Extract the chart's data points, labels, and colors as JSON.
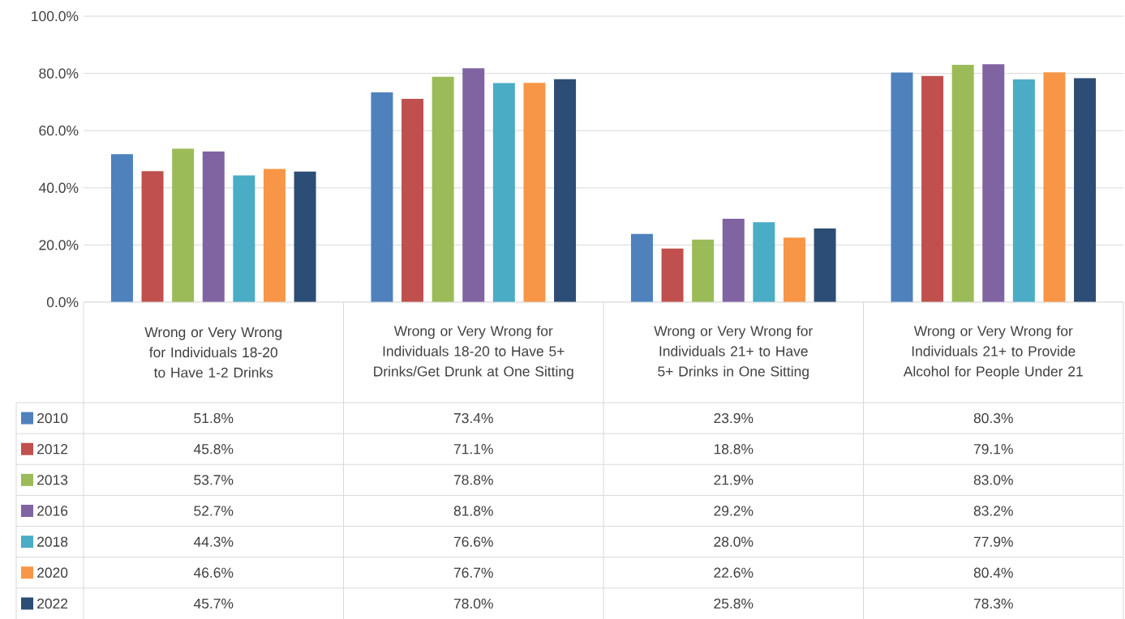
{
  "chart_data": {
    "type": "bar",
    "categories": [
      "Wrong or Very Wrong for Individuals 18-20 to Have 1-2 Drinks",
      "Wrong or Very Wrong for Individuals 18-20 to Have 5+ Drinks/Get Drunk at One Sitting",
      "Wrong or Very Wrong for Individuals 21+ to Have 5+ Drinks in One Sitting",
      "Wrong or Very Wrong for Individuals 21+ to Provide Alcohol for People Under 21"
    ],
    "series": [
      {
        "name": "2010",
        "color": "#4f81bd",
        "values": [
          51.8,
          73.4,
          23.9,
          80.3
        ],
        "value_labels": [
          "51.8%",
          "73.4%",
          "23.9%",
          "80.3%"
        ]
      },
      {
        "name": "2012",
        "color": "#c0504d",
        "values": [
          45.8,
          71.1,
          18.8,
          79.1
        ],
        "value_labels": [
          "45.8%",
          "71.1%",
          "18.8%",
          "79.1%"
        ]
      },
      {
        "name": "2013",
        "color": "#9bbb59",
        "values": [
          53.7,
          78.8,
          21.9,
          83.0
        ],
        "value_labels": [
          "53.7%",
          "78.8%",
          "21.9%",
          "83.0%"
        ]
      },
      {
        "name": "2016",
        "color": "#8064a2",
        "values": [
          52.7,
          81.8,
          29.2,
          83.2
        ],
        "value_labels": [
          "52.7%",
          "81.8%",
          "29.2%",
          "83.2%"
        ]
      },
      {
        "name": "2018",
        "color": "#4bacc6",
        "values": [
          44.3,
          76.6,
          28.0,
          77.9
        ],
        "value_labels": [
          "44.3%",
          "76.6%",
          "28.0%",
          "77.9%"
        ]
      },
      {
        "name": "2020",
        "color": "#f79646",
        "values": [
          46.6,
          76.7,
          22.6,
          80.4
        ],
        "value_labels": [
          "46.6%",
          "76.7%",
          "22.6%",
          "80.4%"
        ]
      },
      {
        "name": "2022",
        "color": "#2c4d75",
        "values": [
          45.7,
          78.0,
          25.8,
          78.3
        ],
        "value_labels": [
          "45.7%",
          "78.0%",
          "25.8%",
          "78.3%"
        ]
      }
    ],
    "ylim": [
      0,
      100
    ],
    "yticks": [
      {
        "value": 0,
        "label": "0.0%"
      },
      {
        "value": 20,
        "label": "20.0%"
      },
      {
        "value": 40,
        "label": "40.0%"
      },
      {
        "value": 60,
        "label": "60.0%"
      },
      {
        "value": 80,
        "label": "80.0%"
      },
      {
        "value": 100,
        "label": "100.0%"
      }
    ],
    "grid": "y",
    "legend": "bottom"
  }
}
